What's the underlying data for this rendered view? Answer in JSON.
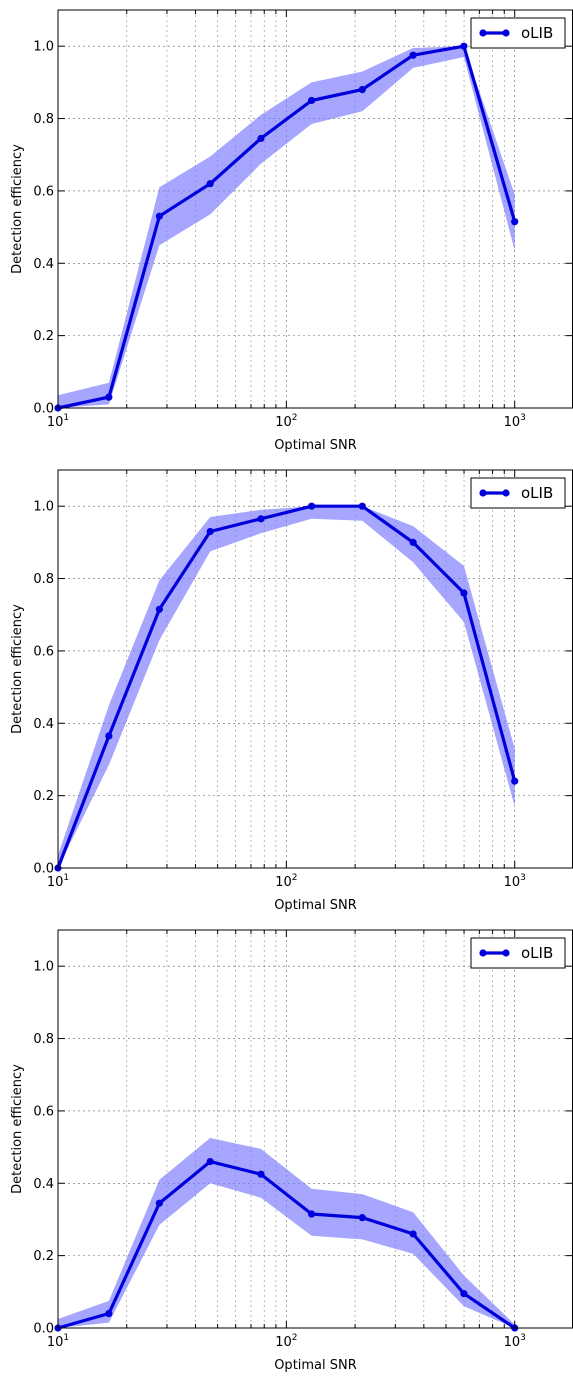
{
  "chart_data": [
    {
      "type": "line",
      "xlabel": "Optimal SNR",
      "ylabel": "Detection efficiency",
      "xscale": "log",
      "xlim": [
        10,
        1800
      ],
      "ylim": [
        0,
        1.1
      ],
      "xticks": [
        {
          "base": "10",
          "exp": "1",
          "value": 10
        },
        {
          "base": "10",
          "exp": "2",
          "value": 100
        },
        {
          "base": "10",
          "exp": "3",
          "value": 1000
        }
      ],
      "yticks": [
        "0.0",
        "0.2",
        "0.4",
        "0.6",
        "0.8",
        "1.0"
      ],
      "grid": true,
      "legend_position": "top-right",
      "series": [
        {
          "name": "oLIB",
          "color": "#0000dd",
          "band_color": "#7777ff",
          "x": [
            10,
            16.7,
            27.8,
            46.4,
            77.4,
            129,
            215,
            359,
            599,
            1000
          ],
          "y": [
            0.0,
            0.03,
            0.53,
            0.62,
            0.745,
            0.85,
            0.88,
            0.975,
            1.0,
            0.515
          ],
          "y_upper": [
            0.035,
            0.07,
            0.61,
            0.695,
            0.81,
            0.9,
            0.93,
            0.995,
            1.0,
            0.59
          ],
          "y_lower": [
            0.0,
            0.01,
            0.45,
            0.535,
            0.675,
            0.785,
            0.82,
            0.94,
            0.97,
            0.435
          ]
        }
      ]
    },
    {
      "type": "line",
      "xlabel": "Optimal SNR",
      "ylabel": "Detection efficiency",
      "xscale": "log",
      "xlim": [
        10,
        1800
      ],
      "ylim": [
        0,
        1.1
      ],
      "xticks": [
        {
          "base": "10",
          "exp": "1",
          "value": 10
        },
        {
          "base": "10",
          "exp": "2",
          "value": 100
        },
        {
          "base": "10",
          "exp": "3",
          "value": 1000
        }
      ],
      "yticks": [
        "0.0",
        "0.2",
        "0.4",
        "0.6",
        "0.8",
        "1.0"
      ],
      "grid": true,
      "legend_position": "top-right",
      "series": [
        {
          "name": "oLIB",
          "color": "#0000dd",
          "band_color": "#7777ff",
          "x": [
            10,
            16.7,
            27.8,
            46.4,
            77.4,
            129,
            215,
            359,
            599,
            1000
          ],
          "y": [
            0.0,
            0.365,
            0.715,
            0.93,
            0.965,
            1.0,
            1.0,
            0.9,
            0.76,
            0.24
          ],
          "y_upper": [
            0.035,
            0.45,
            0.795,
            0.97,
            0.99,
            1.0,
            1.0,
            0.945,
            0.835,
            0.33
          ],
          "y_lower": [
            0.0,
            0.285,
            0.63,
            0.875,
            0.925,
            0.965,
            0.96,
            0.845,
            0.68,
            0.17
          ]
        }
      ]
    },
    {
      "type": "line",
      "xlabel": "Optimal SNR",
      "ylabel": "Detection efficiency",
      "xscale": "log",
      "xlim": [
        10,
        1800
      ],
      "ylim": [
        0,
        1.1
      ],
      "xticks": [
        {
          "base": "10",
          "exp": "1",
          "value": 10
        },
        {
          "base": "10",
          "exp": "2",
          "value": 100
        },
        {
          "base": "10",
          "exp": "3",
          "value": 1000
        }
      ],
      "yticks": [
        "0.0",
        "0.2",
        "0.4",
        "0.6",
        "0.8",
        "1.0"
      ],
      "grid": true,
      "legend_position": "top-right",
      "series": [
        {
          "name": "oLIB",
          "color": "#0000dd",
          "band_color": "#7777ff",
          "x": [
            10,
            16.7,
            27.8,
            46.4,
            77.4,
            129,
            215,
            359,
            599,
            1000
          ],
          "y": [
            0.0,
            0.04,
            0.345,
            0.46,
            0.425,
            0.315,
            0.305,
            0.26,
            0.095,
            0.0
          ],
          "y_upper": [
            0.025,
            0.075,
            0.41,
            0.525,
            0.495,
            0.385,
            0.37,
            0.32,
            0.145,
            0.01
          ],
          "y_lower": [
            0.0,
            0.015,
            0.285,
            0.4,
            0.36,
            0.255,
            0.245,
            0.205,
            0.06,
            0.0
          ]
        }
      ]
    }
  ]
}
